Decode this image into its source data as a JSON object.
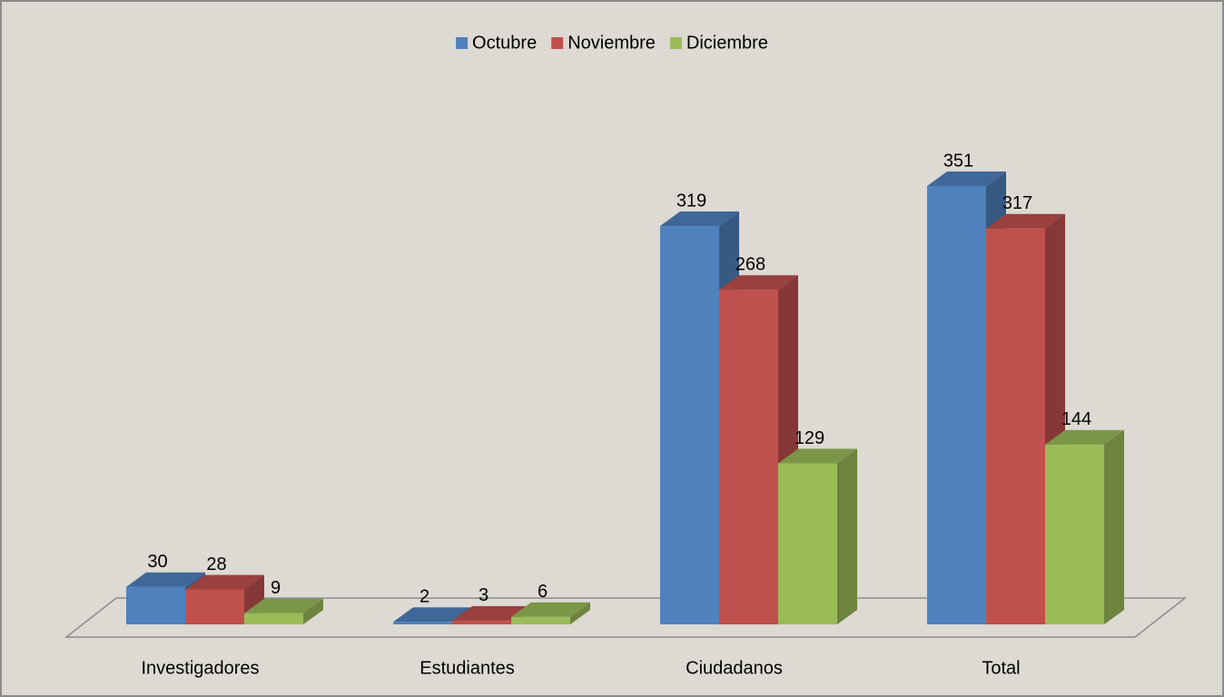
{
  "chart_data": {
    "type": "bar3d",
    "categories": [
      "Investigadores",
      "Estudiantes",
      "Ciudadanos",
      "Total"
    ],
    "series": [
      {
        "name": "Octubre",
        "color": "#4f81bd",
        "values": [
          30,
          2,
          319,
          351
        ]
      },
      {
        "name": "Noviembre",
        "color": "#c0504d",
        "values": [
          28,
          3,
          268,
          317
        ]
      },
      {
        "name": "Diciembre",
        "color": "#9bbb59",
        "values": [
          9,
          6,
          129,
          144
        ]
      }
    ],
    "legend": "top"
  }
}
